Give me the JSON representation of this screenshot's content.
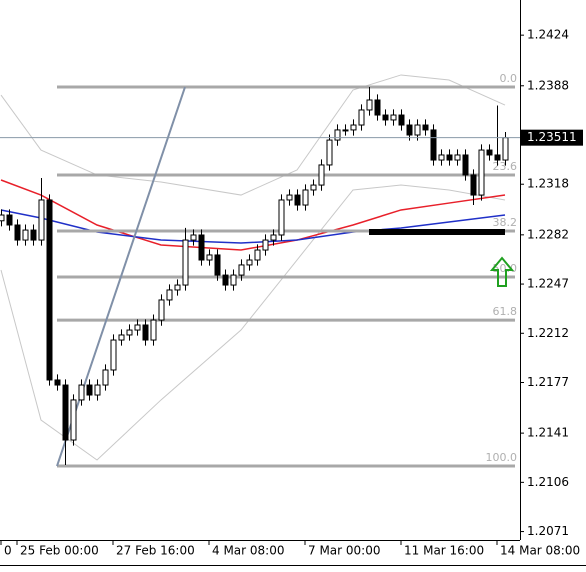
{
  "chart_data": {
    "type": "candlestick",
    "categories": [
      "0",
      null,
      "25 Feb 00:00",
      null,
      null,
      null,
      null,
      null,
      null,
      null,
      null,
      null,
      null,
      null,
      "27 Feb 16:00",
      null,
      null,
      null,
      null,
      null,
      null,
      null,
      null,
      null,
      null,
      null,
      "4 Mar 08:00",
      null,
      null,
      null,
      null,
      null,
      null,
      null,
      null,
      null,
      null,
      null,
      "7 Mar 00:00",
      null,
      null,
      null,
      null,
      null,
      null,
      null,
      null,
      null,
      null,
      null,
      "11 Mar 16:00",
      null,
      null,
      null,
      null,
      null,
      null,
      null,
      null,
      null,
      null,
      null,
      "14 Mar 08:00",
      null
    ],
    "open": [
      1.2292,
      1.22961,
      1.2289,
      1.22783,
      1.22854,
      1.22783,
      1.23068,
      1.21788,
      1.21752,
      1.21361,
      1.21646,
      1.21752,
      1.21681,
      1.21752,
      1.21859,
      1.22072,
      1.22108,
      1.22143,
      1.22179,
      1.22072,
      1.22214,
      1.22357,
      1.22428,
      1.22463,
      1.22783,
      1.22819,
      1.22641,
      1.22677,
      1.22534,
      1.22463,
      1.22534,
      1.22606,
      1.22641,
      1.22712,
      1.22783,
      1.22819,
      1.23068,
      1.23103,
      1.23032,
      1.23139,
      1.23174,
      1.23317,
      1.23494,
      1.23566,
      1.23566,
      1.23601,
      1.23708,
      1.23779,
      1.23672,
      1.23637,
      1.23672,
      1.23601,
      1.2353,
      1.23601,
      1.23566,
      1.23352,
      1.23388,
      1.23352,
      1.23388,
      1.23246,
      1.23103,
      1.23423,
      1.23388,
      1.23352
    ],
    "high": [
      1.23001,
      1.23001,
      1.2293,
      1.22894,
      1.22894,
      1.23224,
      1.23108,
      1.21828,
      1.21792,
      1.21686,
      1.21792,
      1.21792,
      1.21792,
      1.21899,
      1.22112,
      1.22148,
      1.22183,
      1.22219,
      1.22219,
      1.22254,
      1.22397,
      1.22468,
      1.22503,
      1.2287,
      1.22859,
      1.22859,
      1.22717,
      1.22717,
      1.22574,
      1.22574,
      1.22646,
      1.22681,
      1.22752,
      1.22823,
      1.22859,
      1.23108,
      1.23143,
      1.23143,
      1.23179,
      1.23214,
      1.23357,
      1.23534,
      1.23606,
      1.23606,
      1.23641,
      1.23748,
      1.23871,
      1.23819,
      1.23712,
      1.23712,
      1.23712,
      1.23641,
      1.23641,
      1.23641,
      1.23606,
      1.23428,
      1.23428,
      1.23428,
      1.23428,
      1.23286,
      1.23463,
      1.23463,
      1.2374,
      1.23551
    ],
    "low": [
      1.2288,
      1.2285,
      1.22743,
      1.22743,
      1.22743,
      1.22743,
      1.21748,
      1.21712,
      1.21183,
      1.21321,
      1.21606,
      1.21641,
      1.21641,
      1.21712,
      1.21819,
      1.22032,
      1.22068,
      1.22103,
      1.22032,
      1.22032,
      1.22174,
      1.22317,
      1.22388,
      1.22423,
      1.22743,
      1.22601,
      1.22601,
      1.22494,
      1.22423,
      1.22423,
      1.22494,
      1.22566,
      1.22601,
      1.22672,
      1.22743,
      1.22779,
      1.23028,
      1.22992,
      1.22992,
      1.23099,
      1.23134,
      1.23277,
      1.23454,
      1.23526,
      1.23526,
      1.23561,
      1.23668,
      1.23632,
      1.23597,
      1.23597,
      1.23561,
      1.2349,
      1.2349,
      1.23526,
      1.23312,
      1.23312,
      1.23312,
      1.23312,
      1.23206,
      1.23032,
      1.23063,
      1.23348,
      1.23312,
      1.23312
    ],
    "close": [
      1.22961,
      1.2289,
      1.22783,
      1.22854,
      1.22783,
      1.23068,
      1.21788,
      1.21752,
      1.21361,
      1.21646,
      1.21752,
      1.21681,
      1.21752,
      1.21859,
      1.22072,
      1.22108,
      1.22143,
      1.22179,
      1.22072,
      1.22214,
      1.22357,
      1.22428,
      1.22463,
      1.22783,
      1.22819,
      1.22641,
      1.22677,
      1.22534,
      1.22463,
      1.22534,
      1.22606,
      1.22641,
      1.22712,
      1.22783,
      1.22819,
      1.23068,
      1.23103,
      1.23032,
      1.23139,
      1.23174,
      1.23317,
      1.23494,
      1.23566,
      1.23566,
      1.23601,
      1.23708,
      1.23779,
      1.23672,
      1.23637,
      1.23672,
      1.23601,
      1.2353,
      1.23601,
      1.23566,
      1.23352,
      1.23388,
      1.23352,
      1.23388,
      1.23246,
      1.23103,
      1.23423,
      1.23388,
      1.23352,
      1.23511
    ],
    "indicators": [
      {
        "color": "#c8c8c8",
        "x": [
          0,
          5,
          12,
          20,
          30,
          37,
          44,
          50,
          56,
          63
        ],
        "values": [
          1.23814,
          1.23423,
          1.23246,
          1.23196,
          1.23103,
          1.23281,
          1.2385,
          1.23957,
          1.23921,
          1.23743
        ]
      },
      {
        "color": "#c8c8c8",
        "x": [
          0,
          5,
          12,
          20,
          30,
          37,
          44,
          50,
          56,
          63
        ],
        "values": [
          1.2257,
          1.21503,
          1.21219,
          1.21646,
          1.22143,
          1.22641,
          1.23139,
          1.23174,
          1.23139,
          1.23068
        ]
      },
      {
        "color": "#e8202a",
        "x": [
          0,
          5,
          12,
          20,
          30,
          37,
          44,
          50,
          56,
          63
        ],
        "values": [
          1.2321,
          1.23103,
          1.2289,
          1.22748,
          1.22712,
          1.22783,
          1.2289,
          1.22997,
          1.23046,
          1.23103
        ]
      },
      {
        "color": "#2030c8",
        "x": [
          0,
          5,
          12,
          20,
          30,
          37,
          44,
          50,
          56,
          63
        ],
        "values": [
          1.22997,
          1.2294,
          1.2284,
          1.22783,
          1.22762,
          1.22783,
          1.2284,
          1.22869,
          1.22911,
          1.22961
        ]
      }
    ],
    "fibo": {
      "color": "#a8a8a8",
      "x": [
        7,
        63
      ],
      "levels": [
        {
          "label": "0.0",
          "value": 1.23871
        },
        {
          "label": "23.6",
          "value": 1.23246
        },
        {
          "label": "38.2",
          "value": 1.22847
        },
        {
          "label": "50.0",
          "value": 1.2252
        },
        {
          "label": "61.8",
          "value": 1.22214
        },
        {
          "label": "100.0",
          "value": 1.21176
        }
      ]
    },
    "trendline": {
      "color": "#8090a8",
      "x": [
        7,
        23
      ],
      "values": [
        1.21176,
        1.23871
      ]
    },
    "zone": {
      "color": "#000000",
      "x": [
        46,
        63
      ],
      "value": 1.2284
    },
    "ylim": [
      1.2065,
      1.2449
    ],
    "yticks": [
      1.2424,
      1.2388,
      1.2318,
      1.2282,
      1.2247,
      1.2212,
      1.2177,
      1.2141,
      1.2106,
      1.2071
    ]
  }
}
